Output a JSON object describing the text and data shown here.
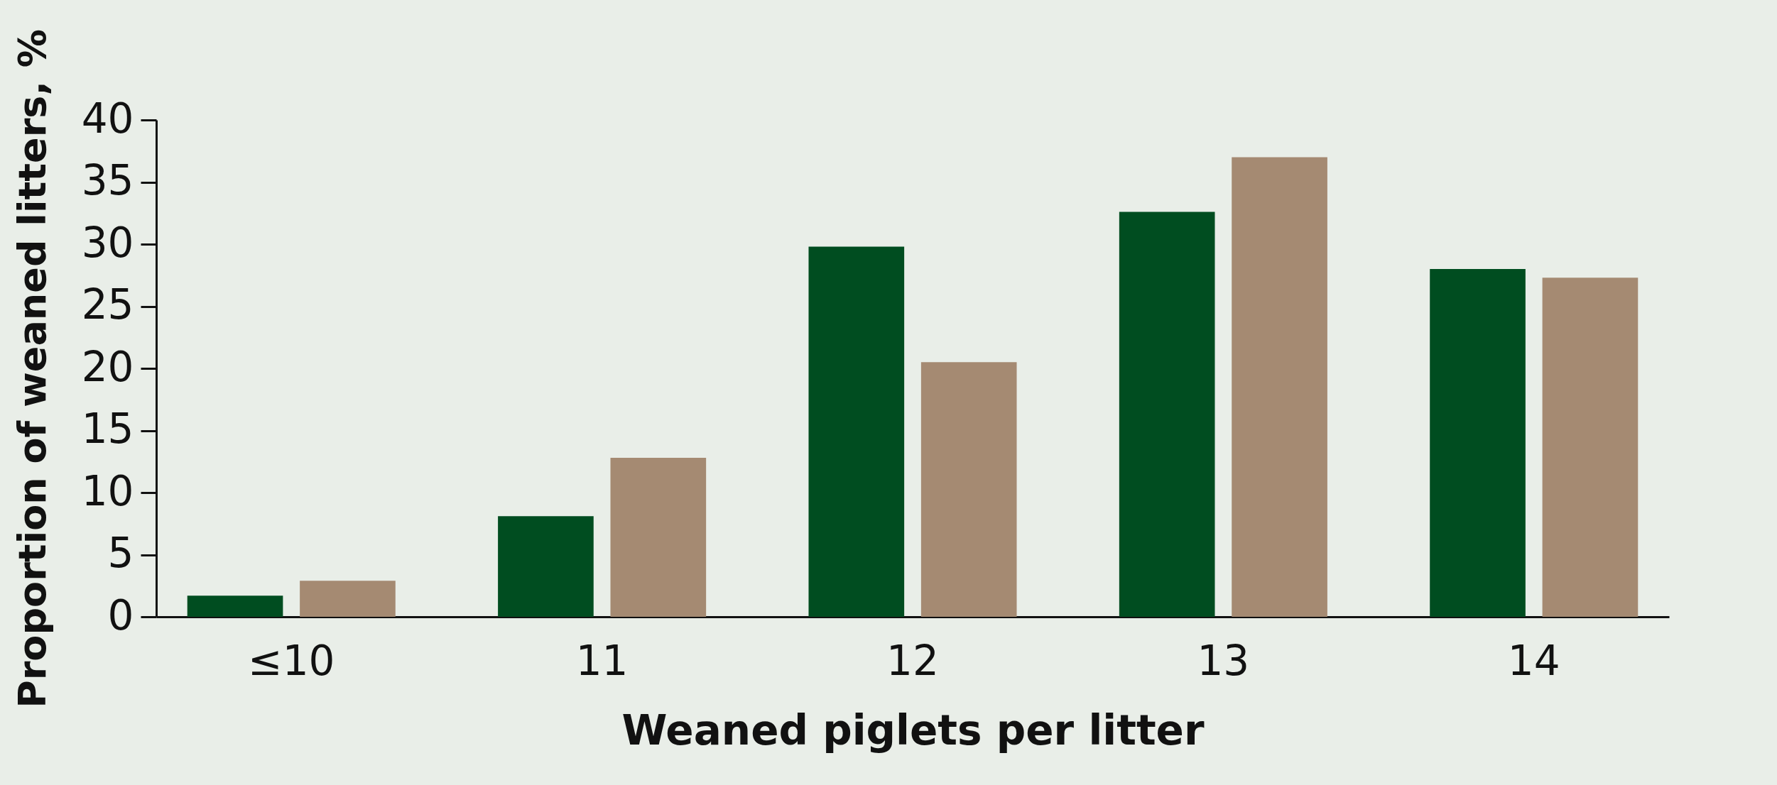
{
  "chart_data": {
    "type": "bar",
    "xlabel": "Weaned piglets per litter",
    "ylabel": "Proportion of weaned litters, %",
    "categories": [
      "≤10",
      "11",
      "12",
      "13",
      "14"
    ],
    "series": [
      {
        "color": "#004d20",
        "values": [
          1.7,
          8.1,
          29.8,
          32.6,
          28.0
        ]
      },
      {
        "color": "#a58a72",
        "values": [
          2.9,
          12.8,
          20.5,
          37.0,
          27.3
        ]
      }
    ],
    "ylim": [
      0,
      40
    ],
    "yticks": [
      0,
      5,
      10,
      15,
      20,
      25,
      30,
      35,
      40
    ],
    "grid": false
  }
}
